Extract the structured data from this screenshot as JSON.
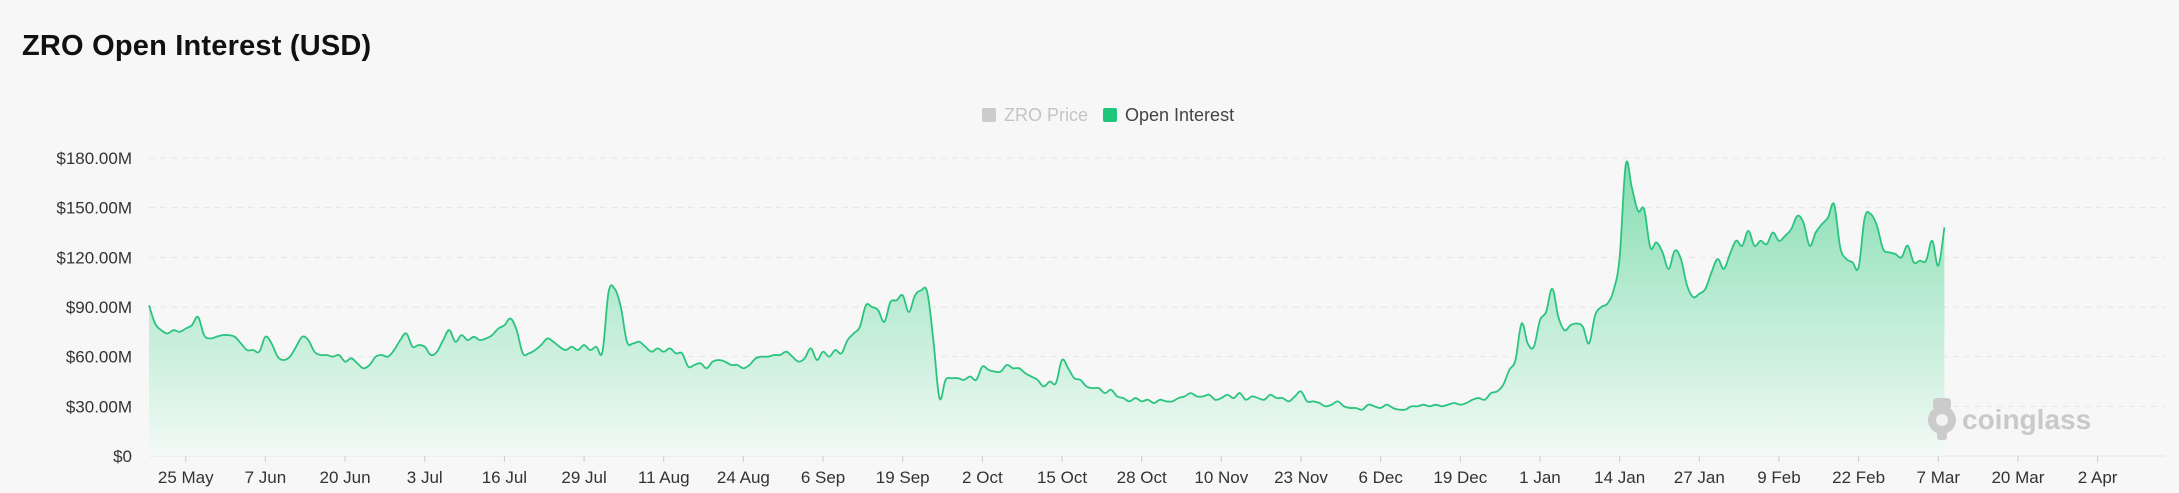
{
  "page": {
    "title": "ZRO Open Interest (USD)"
  },
  "legend": {
    "items": [
      {
        "label": "ZRO Price",
        "color": "#cccccc",
        "active": false
      },
      {
        "label": "Open Interest",
        "color": "#1fc67a",
        "active": true
      }
    ]
  },
  "watermark": {
    "text": "coinglass",
    "icon": "coinglass-logo-icon"
  },
  "colors": {
    "series_line": "#2bc47f",
    "area_top": "#7fdcad",
    "area_bottom": "#f2faf6",
    "grid": "#e6e6e6"
  },
  "chart_data": {
    "type": "area",
    "title": "ZRO Open Interest (USD)",
    "xlabel": "",
    "ylabel": "",
    "ylim": [
      0,
      180000000
    ],
    "y_ticks": [
      0,
      30000000,
      60000000,
      90000000,
      120000000,
      150000000,
      180000000
    ],
    "y_tick_labels": [
      "$0",
      "$30.00M",
      "$60.00M",
      "$90.00M",
      "$120.00M",
      "$150.00M",
      "$180.00M"
    ],
    "x_range": [
      -6,
      323
    ],
    "x_tick_positions": [
      0,
      13,
      26,
      39,
      52,
      65,
      78,
      91,
      104,
      117,
      130,
      143,
      156,
      169,
      182,
      195,
      208,
      221,
      234,
      247,
      260,
      273,
      286,
      299,
      312
    ],
    "x_tick_labels": [
      "25 May",
      "7 Jun",
      "20 Jun",
      "3 Jul",
      "16 Jul",
      "29 Jul",
      "11 Aug",
      "24 Aug",
      "6 Sep",
      "19 Sep",
      "2 Oct",
      "15 Oct",
      "28 Oct",
      "10 Nov",
      "23 Nov",
      "6 Dec",
      "19 Dec",
      "1 Jan",
      "14 Jan",
      "27 Jan",
      "9 Feb",
      "22 Feb",
      "7 Mar",
      "20 Mar",
      "2 Apr"
    ],
    "grid": true,
    "legend_position": "top-center",
    "series": [
      {
        "name": "Open Interest",
        "color": "#2bc47f",
        "points": [
          [
            -6,
            91
          ],
          [
            -5,
            80
          ],
          [
            -4,
            76
          ],
          [
            -3,
            74
          ],
          [
            -2,
            76
          ],
          [
            -1,
            75
          ],
          [
            0,
            77
          ],
          [
            1,
            79
          ],
          [
            2,
            84
          ],
          [
            3,
            73
          ],
          [
            4,
            71
          ],
          [
            5,
            72
          ],
          [
            6,
            73
          ],
          [
            7,
            73
          ],
          [
            8,
            72
          ],
          [
            9,
            68
          ],
          [
            10,
            64
          ],
          [
            11,
            64
          ],
          [
            12,
            63
          ],
          [
            13,
            72
          ],
          [
            14,
            68
          ],
          [
            15,
            60
          ],
          [
            16,
            58
          ],
          [
            17,
            60
          ],
          [
            18,
            66
          ],
          [
            19,
            72
          ],
          [
            20,
            70
          ],
          [
            21,
            63
          ],
          [
            22,
            61
          ],
          [
            23,
            61
          ],
          [
            24,
            60
          ],
          [
            25,
            61
          ],
          [
            26,
            57
          ],
          [
            27,
            59
          ],
          [
            28,
            56
          ],
          [
            29,
            53
          ],
          [
            30,
            55
          ],
          [
            31,
            60
          ],
          [
            32,
            61
          ],
          [
            33,
            60
          ],
          [
            34,
            64
          ],
          [
            35,
            70
          ],
          [
            36,
            74
          ],
          [
            37,
            66
          ],
          [
            38,
            67
          ],
          [
            39,
            66
          ],
          [
            40,
            61
          ],
          [
            41,
            63
          ],
          [
            42,
            70
          ],
          [
            43,
            76
          ],
          [
            44,
            69
          ],
          [
            45,
            73
          ],
          [
            46,
            70
          ],
          [
            47,
            72
          ],
          [
            48,
            70
          ],
          [
            49,
            71
          ],
          [
            50,
            73
          ],
          [
            51,
            77
          ],
          [
            52,
            79
          ],
          [
            53,
            83
          ],
          [
            54,
            76
          ],
          [
            55,
            62
          ],
          [
            56,
            62
          ],
          [
            57,
            64
          ],
          [
            58,
            67
          ],
          [
            59,
            71
          ],
          [
            60,
            69
          ],
          [
            61,
            66
          ],
          [
            62,
            64
          ],
          [
            63,
            66
          ],
          [
            64,
            64
          ],
          [
            65,
            67
          ],
          [
            66,
            64
          ],
          [
            67,
            66
          ],
          [
            68,
            63
          ],
          [
            69,
            99
          ],
          [
            70,
            101
          ],
          [
            71,
            90
          ],
          [
            72,
            69
          ],
          [
            73,
            68
          ],
          [
            74,
            69
          ],
          [
            75,
            66
          ],
          [
            76,
            63
          ],
          [
            77,
            65
          ],
          [
            78,
            63
          ],
          [
            79,
            65
          ],
          [
            80,
            62
          ],
          [
            81,
            62
          ],
          [
            82,
            54
          ],
          [
            83,
            55
          ],
          [
            84,
            56
          ],
          [
            85,
            53
          ],
          [
            86,
            57
          ],
          [
            87,
            58
          ],
          [
            88,
            57
          ],
          [
            89,
            55
          ],
          [
            90,
            55
          ],
          [
            91,
            53
          ],
          [
            92,
            55
          ],
          [
            93,
            59
          ],
          [
            94,
            60
          ],
          [
            95,
            60
          ],
          [
            96,
            61
          ],
          [
            97,
            61
          ],
          [
            98,
            63
          ],
          [
            99,
            60
          ],
          [
            100,
            57
          ],
          [
            101,
            59
          ],
          [
            102,
            65
          ],
          [
            103,
            58
          ],
          [
            104,
            63
          ],
          [
            105,
            60
          ],
          [
            106,
            64
          ],
          [
            107,
            62
          ],
          [
            108,
            70
          ],
          [
            109,
            74
          ],
          [
            110,
            78
          ],
          [
            111,
            91
          ],
          [
            112,
            90
          ],
          [
            113,
            88
          ],
          [
            114,
            81
          ],
          [
            115,
            93
          ],
          [
            116,
            94
          ],
          [
            117,
            97
          ],
          [
            118,
            87
          ],
          [
            119,
            97
          ],
          [
            120,
            100
          ],
          [
            121,
            99
          ],
          [
            122,
            70
          ],
          [
            123,
            35
          ],
          [
            124,
            46
          ],
          [
            125,
            47
          ],
          [
            126,
            47
          ],
          [
            127,
            46
          ],
          [
            128,
            48
          ],
          [
            129,
            46
          ],
          [
            130,
            54
          ],
          [
            131,
            52
          ],
          [
            132,
            51
          ],
          [
            133,
            51
          ],
          [
            134,
            55
          ],
          [
            135,
            53
          ],
          [
            136,
            53
          ],
          [
            137,
            50
          ],
          [
            138,
            48
          ],
          [
            139,
            46
          ],
          [
            140,
            42
          ],
          [
            141,
            45
          ],
          [
            142,
            44
          ],
          [
            143,
            58
          ],
          [
            144,
            53
          ],
          [
            145,
            47
          ],
          [
            146,
            46
          ],
          [
            147,
            42
          ],
          [
            148,
            41
          ],
          [
            149,
            41
          ],
          [
            150,
            38
          ],
          [
            151,
            40
          ],
          [
            152,
            36
          ],
          [
            153,
            35
          ],
          [
            154,
            33
          ],
          [
            155,
            35
          ],
          [
            156,
            33
          ],
          [
            157,
            34
          ],
          [
            158,
            32
          ],
          [
            159,
            34
          ],
          [
            160,
            33
          ],
          [
            161,
            33
          ],
          [
            162,
            35
          ],
          [
            163,
            36
          ],
          [
            164,
            38
          ],
          [
            165,
            36
          ],
          [
            166,
            36
          ],
          [
            167,
            37
          ],
          [
            168,
            34
          ],
          [
            169,
            35
          ],
          [
            170,
            37
          ],
          [
            171,
            35
          ],
          [
            172,
            38
          ],
          [
            173,
            34
          ],
          [
            174,
            36
          ],
          [
            175,
            35
          ],
          [
            176,
            34
          ],
          [
            177,
            37
          ],
          [
            178,
            35
          ],
          [
            179,
            35
          ],
          [
            180,
            33
          ],
          [
            181,
            36
          ],
          [
            182,
            39
          ],
          [
            183,
            33
          ],
          [
            184,
            33
          ],
          [
            185,
            32
          ],
          [
            186,
            30
          ],
          [
            187,
            31
          ],
          [
            188,
            33
          ],
          [
            189,
            30
          ],
          [
            190,
            29
          ],
          [
            191,
            29
          ],
          [
            192,
            28
          ],
          [
            193,
            31
          ],
          [
            194,
            30
          ],
          [
            195,
            29
          ],
          [
            196,
            31
          ],
          [
            197,
            29
          ],
          [
            198,
            28
          ],
          [
            199,
            28
          ],
          [
            200,
            30
          ],
          [
            201,
            30
          ],
          [
            202,
            31
          ],
          [
            203,
            30
          ],
          [
            204,
            31
          ],
          [
            205,
            30
          ],
          [
            206,
            31
          ],
          [
            207,
            32
          ],
          [
            208,
            31
          ],
          [
            209,
            32
          ],
          [
            210,
            34
          ],
          [
            211,
            35
          ],
          [
            212,
            34
          ],
          [
            213,
            38
          ],
          [
            214,
            39
          ],
          [
            215,
            43
          ],
          [
            216,
            52
          ],
          [
            217,
            58
          ],
          [
            218,
            80
          ],
          [
            219,
            68
          ],
          [
            220,
            66
          ],
          [
            221,
            82
          ],
          [
            222,
            87
          ],
          [
            223,
            101
          ],
          [
            224,
            84
          ],
          [
            225,
            76
          ],
          [
            226,
            79
          ],
          [
            227,
            80
          ],
          [
            228,
            78
          ],
          [
            229,
            68
          ],
          [
            230,
            85
          ],
          [
            231,
            90
          ],
          [
            232,
            92
          ],
          [
            233,
            100
          ],
          [
            234,
            120
          ],
          [
            235,
            176
          ],
          [
            236,
            162
          ],
          [
            237,
            148
          ],
          [
            238,
            149
          ],
          [
            239,
            126
          ],
          [
            240,
            129
          ],
          [
            241,
            123
          ],
          [
            242,
            113
          ],
          [
            243,
            124
          ],
          [
            244,
            119
          ],
          [
            245,
            103
          ],
          [
            246,
            96
          ],
          [
            247,
            98
          ],
          [
            248,
            101
          ],
          [
            249,
            111
          ],
          [
            250,
            119
          ],
          [
            251,
            113
          ],
          [
            252,
            122
          ],
          [
            253,
            130
          ],
          [
            254,
            127
          ],
          [
            255,
            136
          ],
          [
            256,
            127
          ],
          [
            257,
            130
          ],
          [
            258,
            128
          ],
          [
            259,
            135
          ],
          [
            260,
            130
          ],
          [
            261,
            133
          ],
          [
            262,
            137
          ],
          [
            263,
            145
          ],
          [
            264,
            141
          ],
          [
            265,
            127
          ],
          [
            266,
            135
          ],
          [
            267,
            140
          ],
          [
            268,
            144
          ],
          [
            269,
            152
          ],
          [
            270,
            126
          ],
          [
            271,
            119
          ],
          [
            272,
            117
          ],
          [
            273,
            114
          ],
          [
            274,
            144
          ],
          [
            275,
            146
          ],
          [
            276,
            139
          ],
          [
            277,
            125
          ],
          [
            278,
            123
          ],
          [
            279,
            122
          ],
          [
            280,
            120
          ],
          [
            281,
            127
          ],
          [
            282,
            117
          ],
          [
            283,
            118
          ],
          [
            284,
            118
          ],
          [
            285,
            130
          ],
          [
            286,
            115
          ],
          [
            287,
            138
          ]
        ]
      },
      {
        "name": "ZRO Price",
        "color": "#cccccc",
        "hidden": true,
        "points": []
      }
    ]
  }
}
